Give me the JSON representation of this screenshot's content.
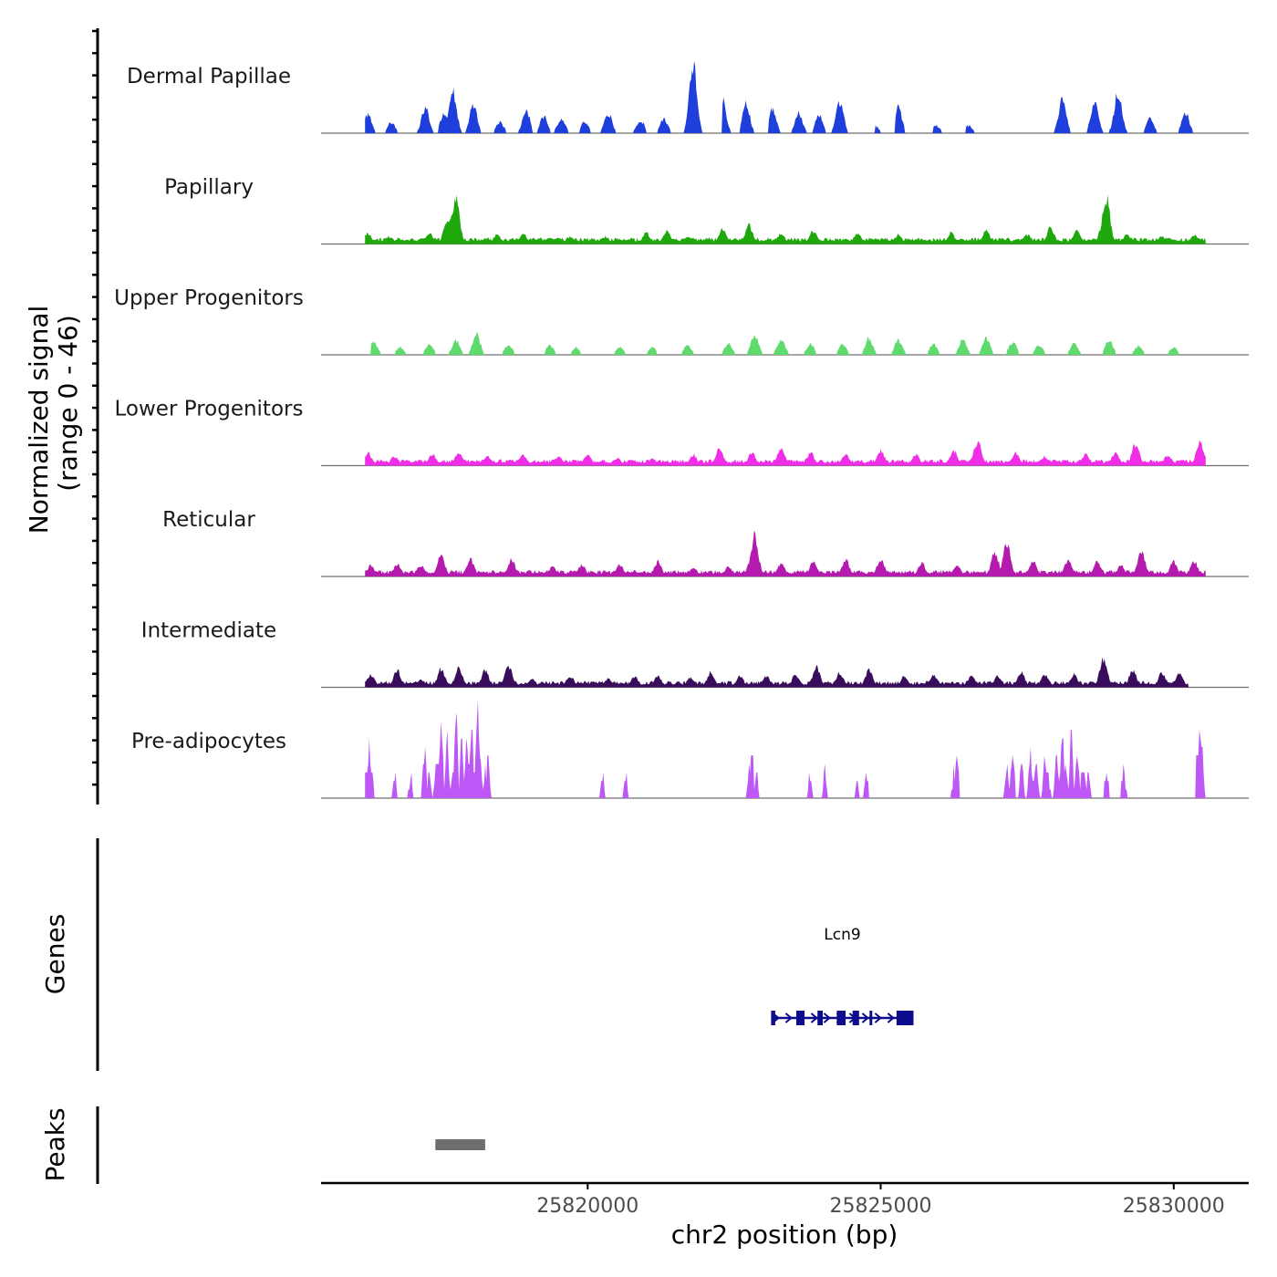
{
  "chart_data": {
    "type": "area",
    "title": "",
    "ylabel_line1": "Normalized signal",
    "ylabel_line2": "(range 0 - 46)",
    "ylim": [
      0,
      46
    ],
    "xlabel": "chr2 position (bp)",
    "xlim": [
      25815450,
      25831280
    ],
    "x_ticks": [
      {
        "value": 25820000,
        "label": "25820000"
      },
      {
        "value": 25825000,
        "label": "25825000"
      },
      {
        "value": 25830000,
        "label": "25830000"
      }
    ],
    "signal_range": [
      25816200,
      25830550
    ],
    "tracks": [
      {
        "name": "Dermal Papillae",
        "color": "#1f3fdc",
        "gapped": true,
        "peaks": [
          [
            25816250,
            10
          ],
          [
            25816650,
            6
          ],
          [
            25817230,
            14
          ],
          [
            25817550,
            11
          ],
          [
            25817700,
            22
          ],
          [
            25818050,
            15
          ],
          [
            25818500,
            6
          ],
          [
            25818950,
            12
          ],
          [
            25819250,
            9
          ],
          [
            25819550,
            8
          ],
          [
            25819950,
            6
          ],
          [
            25820350,
            11
          ],
          [
            25820900,
            7
          ],
          [
            25821300,
            8
          ],
          [
            25821800,
            37
          ],
          [
            25822300,
            18
          ],
          [
            25822700,
            16
          ],
          [
            25823150,
            13
          ],
          [
            25823600,
            11
          ],
          [
            25823950,
            10
          ],
          [
            25824300,
            17
          ],
          [
            25824900,
            4
          ],
          [
            25825300,
            14
          ],
          [
            25825950,
            4
          ],
          [
            25826500,
            4
          ],
          [
            25828100,
            18
          ],
          [
            25828650,
            16
          ],
          [
            25829050,
            22
          ],
          [
            25829600,
            8
          ],
          [
            25830200,
            11
          ]
        ],
        "gaps": [
          [
            25816830,
            25816960
          ],
          [
            25817380,
            25817450
          ],
          [
            25818170,
            25818300
          ],
          [
            25818600,
            25818750
          ],
          [
            25819050,
            25819150
          ],
          [
            25819700,
            25819870
          ],
          [
            25820050,
            25820220
          ],
          [
            25820600,
            25820770
          ],
          [
            25821050,
            25821140
          ],
          [
            25821500,
            25821650
          ],
          [
            25822000,
            25822300
          ],
          [
            25822500,
            25822600
          ],
          [
            25823000,
            25823080
          ],
          [
            25823800,
            25823850
          ],
          [
            25824600,
            25824900
          ],
          [
            25825000,
            25825250
          ],
          [
            25825400,
            25825900
          ],
          [
            25826050,
            25826450
          ],
          [
            25826600,
            25826950
          ],
          [
            25827050,
            25827900
          ]
        ]
      },
      {
        "name": "Papillary",
        "color": "#1fa80c",
        "gapped": false,
        "peaks": [
          [
            25816250,
            6
          ],
          [
            25816600,
            4
          ],
          [
            25817300,
            6
          ],
          [
            25817600,
            12
          ],
          [
            25817700,
            17
          ],
          [
            25817750,
            25
          ],
          [
            25818450,
            5
          ],
          [
            25818900,
            6
          ],
          [
            25819700,
            4
          ],
          [
            25820300,
            4
          ],
          [
            25821000,
            6
          ],
          [
            25821350,
            7
          ],
          [
            25821700,
            4
          ],
          [
            25822300,
            8
          ],
          [
            25822750,
            10
          ],
          [
            25823300,
            6
          ],
          [
            25823850,
            7
          ],
          [
            25824600,
            6
          ],
          [
            25825300,
            5
          ],
          [
            25826200,
            6
          ],
          [
            25826800,
            7
          ],
          [
            25827500,
            5
          ],
          [
            25827900,
            9
          ],
          [
            25828350,
            8
          ],
          [
            25828800,
            12
          ],
          [
            25828850,
            25
          ],
          [
            25829200,
            5
          ],
          [
            25829800,
            4
          ],
          [
            25830350,
            5
          ]
        ]
      },
      {
        "name": "Upper Progenitors",
        "color": "#5edb6c",
        "gapped": true,
        "peaks": [
          [
            25816350,
            7
          ],
          [
            25816800,
            4
          ],
          [
            25817300,
            6
          ],
          [
            25817750,
            8
          ],
          [
            25818100,
            11
          ],
          [
            25818650,
            6
          ],
          [
            25819350,
            5
          ],
          [
            25819800,
            4
          ],
          [
            25820550,
            4
          ],
          [
            25821100,
            4
          ],
          [
            25821700,
            5
          ],
          [
            25822400,
            6
          ],
          [
            25822850,
            11
          ],
          [
            25823300,
            9
          ],
          [
            25823800,
            6
          ],
          [
            25824350,
            6
          ],
          [
            25824800,
            9
          ],
          [
            25825300,
            8
          ],
          [
            25825900,
            6
          ],
          [
            25826400,
            8
          ],
          [
            25826800,
            9
          ],
          [
            25827250,
            7
          ],
          [
            25827700,
            5
          ],
          [
            25828300,
            6
          ],
          [
            25828900,
            8
          ],
          [
            25829400,
            5
          ],
          [
            25830000,
            4
          ]
        ],
        "gaps": [
          [
            25816200,
            25816300
          ],
          [
            25816500,
            25816700
          ],
          [
            25818900,
            25819100
          ],
          [
            25820100,
            25820200
          ],
          [
            25821300,
            25821500
          ],
          [
            25821900,
            25822100
          ],
          [
            25825500,
            25825700
          ],
          [
            25828000,
            25828150
          ],
          [
            25829700,
            25829850
          ],
          [
            25830200,
            25830300
          ]
        ]
      },
      {
        "name": "Lower Progenitors",
        "color": "#f02ee8",
        "gapped": false,
        "peaks": [
          [
            25816250,
            7
          ],
          [
            25816700,
            5
          ],
          [
            25817350,
            6
          ],
          [
            25817800,
            7
          ],
          [
            25818300,
            5
          ],
          [
            25818900,
            6
          ],
          [
            25819500,
            5
          ],
          [
            25820000,
            6
          ],
          [
            25820500,
            4
          ],
          [
            25821100,
            4
          ],
          [
            25821800,
            6
          ],
          [
            25822250,
            9
          ],
          [
            25822800,
            7
          ],
          [
            25823300,
            9
          ],
          [
            25823800,
            7
          ],
          [
            25824400,
            6
          ],
          [
            25825000,
            8
          ],
          [
            25825600,
            6
          ],
          [
            25826250,
            8
          ],
          [
            25826650,
            13
          ],
          [
            25827300,
            7
          ],
          [
            25827800,
            5
          ],
          [
            25828500,
            6
          ],
          [
            25829000,
            7
          ],
          [
            25829350,
            12
          ],
          [
            25829900,
            6
          ],
          [
            25830450,
            13
          ]
        ]
      },
      {
        "name": "Reticular",
        "color": "#b31aad",
        "gapped": false,
        "peaks": [
          [
            25816300,
            6
          ],
          [
            25816750,
            7
          ],
          [
            25817150,
            6
          ],
          [
            25817500,
            11
          ],
          [
            25818000,
            9
          ],
          [
            25818700,
            9
          ],
          [
            25819400,
            5
          ],
          [
            25819900,
            6
          ],
          [
            25820550,
            6
          ],
          [
            25821200,
            8
          ],
          [
            25821800,
            5
          ],
          [
            25822400,
            5
          ],
          [
            25822800,
            11
          ],
          [
            25822850,
            22
          ],
          [
            25823300,
            7
          ],
          [
            25823850,
            8
          ],
          [
            25824400,
            9
          ],
          [
            25825000,
            9
          ],
          [
            25825700,
            7
          ],
          [
            25826300,
            6
          ],
          [
            25826950,
            13
          ],
          [
            25827150,
            19
          ],
          [
            25827600,
            8
          ],
          [
            25828200,
            9
          ],
          [
            25828700,
            8
          ],
          [
            25829100,
            6
          ],
          [
            25829450,
            14
          ],
          [
            25830000,
            8
          ],
          [
            25830350,
            8
          ]
        ]
      },
      {
        "name": "Intermediate",
        "color": "#3a0d5c",
        "gapped": false,
        "peaks": [
          [
            25816300,
            7
          ],
          [
            25816750,
            9
          ],
          [
            25817150,
            4
          ],
          [
            25817500,
            10
          ],
          [
            25817800,
            11
          ],
          [
            25818250,
            9
          ],
          [
            25818650,
            12
          ],
          [
            25819050,
            5
          ],
          [
            25819700,
            6
          ],
          [
            25820350,
            5
          ],
          [
            25820800,
            6
          ],
          [
            25821200,
            6
          ],
          [
            25821750,
            5
          ],
          [
            25822100,
            8
          ],
          [
            25822600,
            6
          ],
          [
            25823050,
            6
          ],
          [
            25823550,
            7
          ],
          [
            25823900,
            11
          ],
          [
            25824300,
            8
          ],
          [
            25824800,
            9
          ],
          [
            25825400,
            6
          ],
          [
            25825900,
            7
          ],
          [
            25826550,
            6
          ],
          [
            25827000,
            6
          ],
          [
            25827400,
            8
          ],
          [
            25827800,
            7
          ],
          [
            25828300,
            7
          ],
          [
            25828800,
            16
          ],
          [
            25829300,
            9
          ],
          [
            25829800,
            8
          ],
          [
            25830100,
            7
          ]
        ],
        "gaps": [
          [
            25830250,
            25830550
          ]
        ]
      },
      {
        "name": "Pre-adipocytes",
        "color": "#bd57f5",
        "gapped": true,
        "peaks": [
          [
            25816200,
            14
          ],
          [
            25816270,
            24
          ],
          [
            25816320,
            14
          ],
          [
            25816700,
            12
          ],
          [
            25816980,
            12
          ],
          [
            25817220,
            23
          ],
          [
            25817300,
            11
          ],
          [
            25817420,
            20
          ],
          [
            25817500,
            38
          ],
          [
            25817600,
            29
          ],
          [
            25817690,
            14
          ],
          [
            25817750,
            49
          ],
          [
            25817850,
            32
          ],
          [
            25817940,
            33
          ],
          [
            25818020,
            46
          ],
          [
            25818080,
            15
          ],
          [
            25818120,
            53
          ],
          [
            25818170,
            21
          ],
          [
            25818250,
            16
          ],
          [
            25818300,
            24
          ],
          [
            25820250,
            12
          ],
          [
            25820650,
            12
          ],
          [
            25822750,
            12
          ],
          [
            25822800,
            23
          ],
          [
            25822870,
            13
          ],
          [
            25823800,
            12
          ],
          [
            25824050,
            12
          ],
          [
            25824600,
            11
          ],
          [
            25824750,
            12
          ],
          [
            25826250,
            12
          ],
          [
            25826300,
            24
          ],
          [
            25827150,
            15
          ],
          [
            25827250,
            23
          ],
          [
            25827400,
            20
          ],
          [
            25827550,
            24
          ],
          [
            25827650,
            17
          ],
          [
            25827800,
            22
          ],
          [
            25827850,
            14
          ],
          [
            25828000,
            25
          ],
          [
            25828100,
            29
          ],
          [
            25828150,
            16
          ],
          [
            25828250,
            34
          ],
          [
            25828350,
            27
          ],
          [
            25828450,
            18
          ],
          [
            25828550,
            14
          ],
          [
            25828850,
            12
          ],
          [
            25829150,
            13
          ],
          [
            25830400,
            26
          ],
          [
            25830440,
            35
          ],
          [
            25830480,
            30
          ]
        ],
        "gaps": [
          [
            25816360,
            25816650
          ],
          [
            25816750,
            25816930
          ],
          [
            25817040,
            25817170
          ],
          [
            25818350,
            25820190
          ],
          [
            25820300,
            25820600
          ],
          [
            25820700,
            25822700
          ],
          [
            25822920,
            25823740
          ],
          [
            25823860,
            25823990
          ],
          [
            25824110,
            25824540
          ],
          [
            25824800,
            25826200
          ],
          [
            25826350,
            25827100
          ],
          [
            25828650,
            25828800
          ],
          [
            25828900,
            25829100
          ],
          [
            25829200,
            25830370
          ]
        ]
      }
    ],
    "genes": {
      "label": "Genes",
      "items": [
        {
          "name": "Lcn9",
          "start": 25823130,
          "end": 25825560,
          "strand": "+",
          "color": "#0c0c8c",
          "exons": [
            [
              25823130,
              25823200
            ],
            [
              25823560,
              25823700
            ],
            [
              25823920,
              25824010
            ],
            [
              25824250,
              25824400
            ],
            [
              25824520,
              25824630
            ],
            [
              25824810,
              25824850
            ],
            [
              25825270,
              25825560
            ]
          ]
        }
      ]
    },
    "peaks_track": {
      "label": "Peaks",
      "color": "#6e6e6e",
      "regions": [
        [
          25817400,
          25818250
        ]
      ]
    }
  }
}
